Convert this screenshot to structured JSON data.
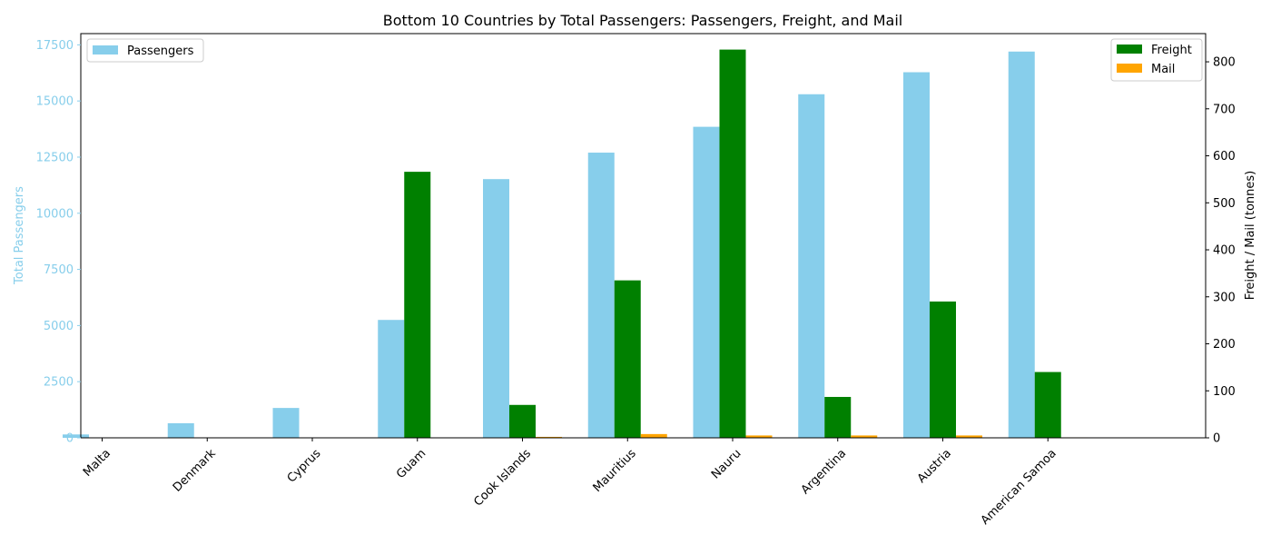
{
  "chart_data": {
    "type": "bar",
    "title": "Bottom 10 Countries by Total Passengers: Passengers, Freight, and Mail",
    "categories": [
      "Malta",
      "Denmark",
      "Cyprus",
      "Guam",
      "Cook Islands",
      "Mauritius",
      "Nauru",
      "Argentina",
      "Austria",
      "American Samoa"
    ],
    "ylabel_left": "Total Passengers",
    "ylabel_right": "Freight / Mail (tonnes)",
    "ylim_left": [
      0,
      18000
    ],
    "ylim_right": [
      0,
      860
    ],
    "yticks_left": [
      0,
      2500,
      5000,
      7500,
      10000,
      12500,
      15000,
      17500
    ],
    "yticks_right": [
      0,
      100,
      200,
      300,
      400,
      500,
      600,
      700,
      800
    ],
    "series": [
      {
        "name": "Passengers",
        "axis": "left",
        "color": "#87CEEB",
        "values": [
          150,
          650,
          1330,
          5250,
          11520,
          12700,
          13850,
          15300,
          16280,
          17200
        ]
      },
      {
        "name": "Freight",
        "axis": "right",
        "color": "#008000",
        "values": [
          0,
          0,
          0,
          566,
          70,
          335,
          826,
          87,
          290,
          140
        ]
      },
      {
        "name": "Mail",
        "axis": "right",
        "color": "#FFA500",
        "values": [
          0,
          0,
          0,
          0,
          2,
          8,
          5,
          5,
          5,
          1
        ]
      }
    ],
    "legend_left": "top-left",
    "legend_right": "top-right",
    "grid": false
  }
}
